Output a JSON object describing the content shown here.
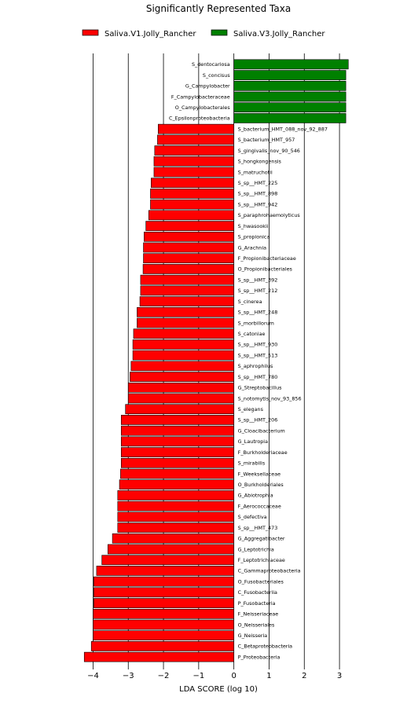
{
  "chart_data": {
    "type": "bar",
    "orientation": "horizontal",
    "title": "Significantly Represented Taxa",
    "xlabel": "LDA SCORE (log 10)",
    "ylabel": "",
    "xlim": [
      -4.3,
      3.4
    ],
    "xticks": [
      -4,
      -3,
      -2,
      -1,
      0,
      1,
      2,
      3
    ],
    "grid": "vertical lines at major x ticks",
    "legend_position": "top",
    "series": [
      {
        "name": "Saliva.V1.Jolly_Rancher",
        "color": "#ff0000"
      },
      {
        "name": "Saliva.V3.Jolly_Rancher",
        "color": "#008000"
      }
    ],
    "categories": [
      "S_dentocariosa",
      "S_concisus",
      "G_Campylobacter",
      "F_Campylobacteraceae",
      "O_Campylobacterales",
      "C_Epsilonproteobacteria",
      "S_bacterium_HMT_088_nov_92_887",
      "S_bacterium_HMT_957",
      "S_gingivalis_nov_90_546",
      "S_hongkongensis",
      "S_matruchotii",
      "S_sp__HMT_225",
      "S_sp__HMT_898",
      "S_sp__HMT_942",
      "S_paraphrohaemolyticus",
      "S_hwasookii",
      "S_propionica",
      "G_Arachnia",
      "F_Propionibacteriaceae",
      "O_Propionibacteriales",
      "S_sp__HMT_392",
      "S_sp__HMT_212",
      "S_cinerea",
      "S_sp__HMT_248",
      "S_morbillorum",
      "S_catoniae",
      "S_sp__HMT_930",
      "S_sp__HMT_513",
      "S_aphrophilus",
      "S_sp__HMT_780",
      "G_Streptobacillus",
      "S_notomytis_nov_93_856",
      "S_elegans",
      "S_sp__HMT_206",
      "G_Cloacibacterium",
      "G_Lautropia",
      "F_Burkholderiaceae",
      "S_mirabilis",
      "F_Weeksellaceae",
      "O_Burkholderiales",
      "G_Abiotrophia",
      "F_Aerococcaceae",
      "S_defectiva",
      "S_sp__HMT_473",
      "G_Aggregatibacter",
      "G_Leptotrichia",
      "F_Leptotrichiaceae",
      "C_Gammaproteobacteria",
      "O_Fusobacteriales",
      "C_Fusobacteriia",
      "P_Fusobacteria",
      "F_Neisseriaceae",
      "O_Neisseriales",
      "G_Neisseria",
      "C_Betaproteobacteria",
      "P_Proteobacteria"
    ],
    "values": [
      3.25,
      3.18,
      3.18,
      3.18,
      3.18,
      3.18,
      -2.15,
      -2.17,
      -2.25,
      -2.27,
      -2.27,
      -2.35,
      -2.37,
      -2.37,
      -2.42,
      -2.5,
      -2.55,
      -2.57,
      -2.57,
      -2.58,
      -2.65,
      -2.65,
      -2.67,
      -2.75,
      -2.75,
      -2.85,
      -2.87,
      -2.87,
      -2.92,
      -2.95,
      -3.0,
      -3.0,
      -3.08,
      -3.2,
      -3.2,
      -3.2,
      -3.2,
      -3.2,
      -3.22,
      -3.25,
      -3.3,
      -3.3,
      -3.3,
      -3.3,
      -3.45,
      -3.58,
      -3.75,
      -3.9,
      -3.98,
      -3.98,
      -3.98,
      -4.0,
      -4.0,
      -4.0,
      -4.05,
      -4.25
    ]
  }
}
